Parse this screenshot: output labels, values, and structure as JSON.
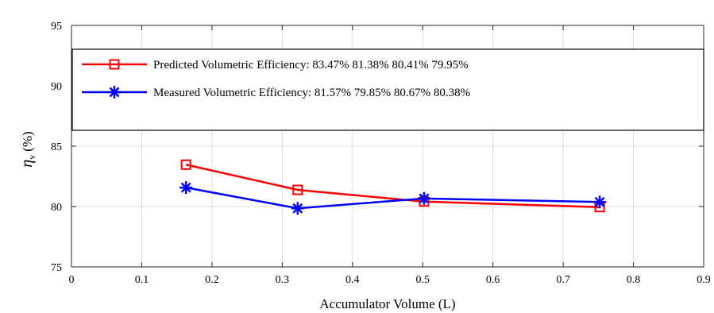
{
  "chart_data": {
    "type": "line",
    "xlabel": "Accumulator Volume (L)",
    "ylabel_symbol": "η",
    "ylabel_sub": "v",
    "ylabel_unit": "(%)",
    "xlim": [
      0,
      0.9
    ],
    "ylim": [
      75,
      95
    ],
    "xticks": [
      0,
      0.1,
      0.2,
      0.3,
      0.4,
      0.5,
      0.6,
      0.7,
      0.8,
      0.9
    ],
    "xtick_labels": [
      "0",
      "0.1",
      "0.2",
      "0.3",
      "0.4",
      "0.5",
      "0.6",
      "0.7",
      "0.8",
      "0.9"
    ],
    "yticks": [
      75,
      80,
      85,
      90,
      95
    ],
    "ytick_labels": [
      "75",
      "80",
      "85",
      "90",
      "95"
    ],
    "grid": true,
    "legend_position": "top",
    "series": [
      {
        "name": "Predicted Volumetric Efficiency: 83.47% 81.38% 80.41% 79.95%",
        "color": "#ff0000",
        "marker": "square",
        "x": [
          0.163,
          0.322,
          0.502,
          0.752
        ],
        "y": [
          83.47,
          81.38,
          80.41,
          79.95
        ]
      },
      {
        "name": "Measured Volumetric Efficiency: 81.57% 79.85% 80.67% 80.38%",
        "color": "#0000ff",
        "marker": "asterisk",
        "x": [
          0.163,
          0.322,
          0.502,
          0.752
        ],
        "y": [
          81.57,
          79.85,
          80.67,
          80.38
        ]
      }
    ]
  }
}
